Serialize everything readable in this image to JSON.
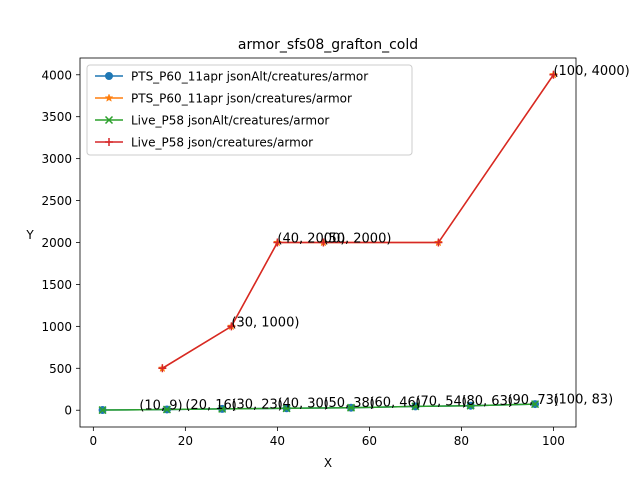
{
  "chart_data": {
    "type": "line",
    "title": "armor_sfs08_grafton_cold",
    "xlabel": "X",
    "ylabel": "Y",
    "xlim": [
      -2.9,
      104.9
    ],
    "ylim": [
      -200,
      4200
    ],
    "xticks": [
      0,
      20,
      40,
      60,
      80,
      100
    ],
    "yticks": [
      0,
      500,
      1000,
      1500,
      2000,
      2500,
      3000,
      3500,
      4000
    ],
    "legend_position": "upper-left",
    "grid": false,
    "series": [
      {
        "name": "PTS_P60_11apr jsonAlt/creatures/armor",
        "color": "#1f77b4",
        "marker": "circle",
        "x": [
          2,
          16,
          28,
          42,
          56,
          70,
          82,
          96
        ],
        "y": [
          2,
          9,
          16,
          23,
          30,
          46,
          54,
          73
        ]
      },
      {
        "name": "PTS_P60_11apr json/creatures/armor",
        "color": "#ff7f0e",
        "marker": "star",
        "x": [
          15,
          30,
          40,
          50,
          75,
          100
        ],
        "y": [
          500,
          1000,
          2000,
          2000,
          2000,
          4000
        ]
      },
      {
        "name": "Live_P58 jsonAlt/creatures/armor",
        "color": "#2ca02c",
        "marker": "x",
        "x": [
          2,
          16,
          28,
          42,
          56,
          70,
          82,
          96
        ],
        "y": [
          2,
          9,
          16,
          23,
          30,
          46,
          54,
          73
        ]
      },
      {
        "name": "Live_P58 json/creatures/armor",
        "color": "#d62728",
        "marker": "plus",
        "x": [
          15,
          30,
          40,
          50,
          75,
          100
        ],
        "y": [
          500,
          1000,
          2000,
          2000,
          2000,
          4000
        ]
      }
    ],
    "annotations": [
      {
        "text": "(10, 9)",
        "x": 10,
        "y": 9
      },
      {
        "text": "(20, 16)",
        "x": 20,
        "y": 16
      },
      {
        "text": "(30, 23)",
        "x": 30,
        "y": 23
      },
      {
        "text": "(40, 30)",
        "x": 40,
        "y": 30
      },
      {
        "text": "(50, 38)",
        "x": 50,
        "y": 38
      },
      {
        "text": "(60, 46)",
        "x": 60,
        "y": 46
      },
      {
        "text": "(70, 54)",
        "x": 70,
        "y": 54
      },
      {
        "text": "(80, 63)",
        "x": 80,
        "y": 63
      },
      {
        "text": "(90, 73)",
        "x": 90,
        "y": 73
      },
      {
        "text": "(100, 83)",
        "x": 100,
        "y": 83
      },
      {
        "text": "(30, 1000)",
        "x": 30,
        "y": 1000
      },
      {
        "text": "(40, 2000)",
        "x": 40,
        "y": 2000
      },
      {
        "text": "(50, 2000)",
        "x": 50,
        "y": 2000
      },
      {
        "text": "(100, 4000)",
        "x": 100,
        "y": 4000
      }
    ]
  }
}
